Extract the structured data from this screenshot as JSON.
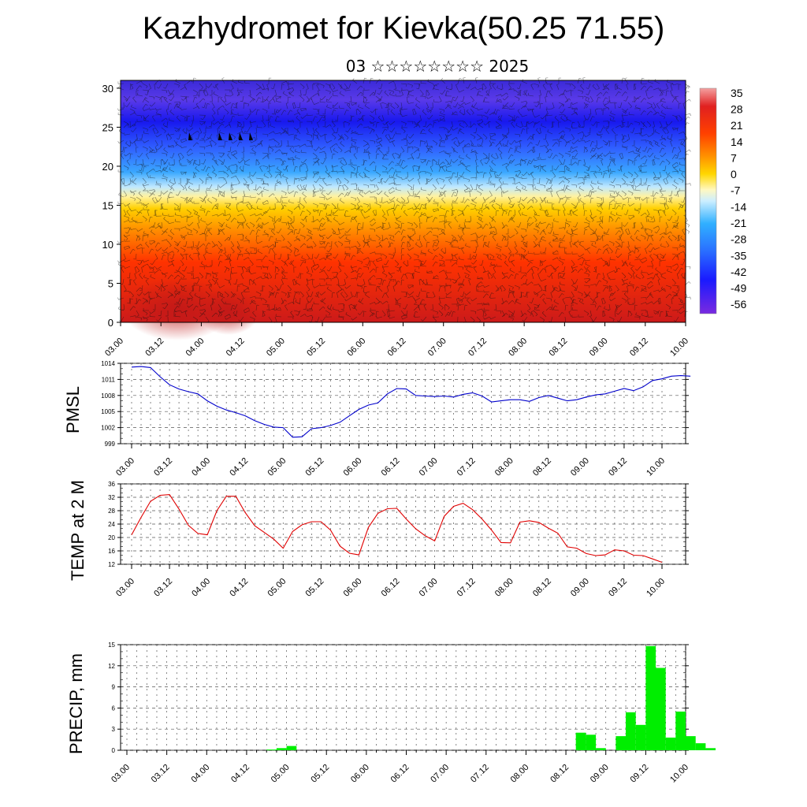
{
  "title": "Kazhydromet for Kievka(50.25 71.55)",
  "subtitle": "03 ☆☆☆☆☆☆☆☆ 2025",
  "colors": {
    "pmsl": "#0000cc",
    "temp": "#e00000",
    "precip": "#00ee00",
    "grid": "#555555"
  },
  "chart_data": [
    {
      "type": "heatmap",
      "title": "Kazhydromet for Kievka(50.25 71.55)",
      "x_ticks": [
        "03.00",
        "03.12",
        "04.00",
        "04.12",
        "05.00",
        "05.12",
        "06.00",
        "06.12",
        "07.00",
        "07.12",
        "08.00",
        "08.12",
        "09.00",
        "09.12",
        "10.00"
      ],
      "y_ticks": [
        "0",
        "5",
        "10",
        "15",
        "20",
        "25",
        "30"
      ],
      "ylim": [
        0,
        31
      ],
      "colorbar_labels": [
        "35",
        "28",
        "21",
        "14",
        "7",
        "0",
        "-7",
        "-14",
        "-21",
        "-28",
        "-35",
        "-42",
        "-49",
        "-56"
      ],
      "colorbar_range": [
        -60,
        37
      ]
    },
    {
      "type": "line",
      "ylabel": "PMSL",
      "x_ticks": [
        "03.00",
        "03.12",
        "04.00",
        "04.12",
        "05.00",
        "05.12",
        "06.00",
        "06.12",
        "07.00",
        "07.12",
        "08.00",
        "08.12",
        "09.00",
        "09.12",
        "10.00"
      ],
      "y_ticks": [
        "1014",
        "1011",
        "1008",
        "1005",
        "1002",
        "999"
      ],
      "ylim": [
        999,
        1014
      ],
      "x_step_hours": 3,
      "values": [
        1013.3,
        1013.4,
        1013.2,
        1011.5,
        1010.0,
        1009.2,
        1008.7,
        1008.3,
        1007.0,
        1006.0,
        1005.3,
        1004.8,
        1004.2,
        1003.3,
        1002.6,
        1002.1,
        1002.0,
        1000.2,
        1000.3,
        1001.8,
        1002.0,
        1002.4,
        1003.0,
        1004.2,
        1005.4,
        1006.2,
        1006.6,
        1008.3,
        1009.3,
        1009.2,
        1008.0,
        1007.9,
        1007.8,
        1007.9,
        1007.7,
        1008.2,
        1008.5,
        1007.9,
        1006.8,
        1007.0,
        1007.2,
        1007.2,
        1006.9,
        1007.6,
        1008.0,
        1007.5,
        1007.0,
        1007.2,
        1007.7,
        1008.1,
        1008.3,
        1008.8,
        1009.3,
        1008.9,
        1009.6,
        1010.8,
        1011.1,
        1011.6,
        1011.7,
        1011.6
      ]
    },
    {
      "type": "line",
      "ylabel": "TEMP at 2 M",
      "x_ticks": [
        "03.00",
        "03.12",
        "04.00",
        "04.12",
        "05.00",
        "05.12",
        "06.00",
        "06.12",
        "07.00",
        "07.12",
        "08.00",
        "08.12",
        "09.00",
        "09.12",
        "10.00"
      ],
      "y_ticks": [
        "36",
        "32",
        "28",
        "24",
        "20",
        "16",
        "12"
      ],
      "ylim": [
        12,
        36
      ],
      "x_step_hours": 3,
      "values": [
        20.8,
        26.0,
        30.8,
        32.6,
        32.8,
        28.5,
        23.6,
        21.2,
        20.8,
        28.0,
        32.3,
        32.3,
        27.4,
        23.5,
        21.5,
        19.5,
        16.8,
        21.8,
        23.8,
        24.7,
        24.7,
        22.2,
        17.4,
        15.3,
        14.8,
        23.0,
        27.2,
        28.6,
        28.7,
        25.5,
        22.6,
        20.5,
        19.0,
        26.3,
        29.3,
        30.2,
        28.3,
        25.5,
        22.2,
        18.5,
        18.4,
        24.6,
        25.0,
        24.5,
        22.8,
        21.3,
        17.2,
        16.8,
        15.2,
        14.6,
        14.8,
        16.3,
        16.0,
        14.7,
        14.6,
        13.6,
        12.6
      ]
    },
    {
      "type": "bar",
      "ylabel": "PRECIP, mm",
      "x_ticks": [
        "03.00",
        "03.12",
        "04.00",
        "04.12",
        "05.00",
        "05.12",
        "06.00",
        "06.12",
        "07.00",
        "07.12",
        "08.00",
        "08.12",
        "09.00",
        "09.12",
        "10.00"
      ],
      "y_ticks": [
        "15",
        "12",
        "9",
        "6",
        "3",
        "0"
      ],
      "ylim": [
        0,
        15
      ],
      "x_step_hours": 3,
      "values": [
        0,
        0,
        0,
        0,
        0,
        0,
        0,
        0,
        0,
        0,
        0,
        0,
        0,
        0,
        0.1,
        0.3,
        0.6,
        0,
        0,
        0,
        0,
        0,
        0,
        0,
        0,
        0,
        0,
        0,
        0,
        0,
        0,
        0,
        0,
        0,
        0,
        0,
        0,
        0,
        0,
        0,
        0,
        0,
        0,
        0,
        0,
        2.5,
        2.2,
        0.3,
        0,
        2.0,
        5.4,
        3.6,
        14.8,
        11.7,
        1.8,
        5.5,
        2.0,
        1.0,
        0.3,
        0
      ]
    }
  ]
}
